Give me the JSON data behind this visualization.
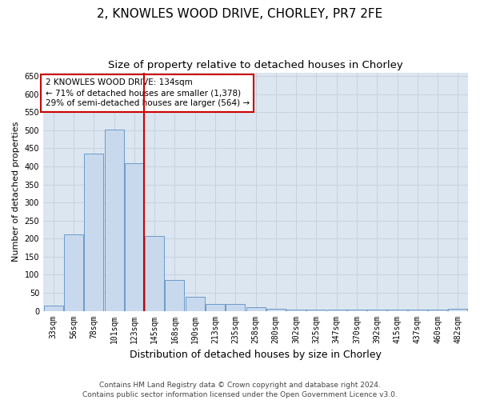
{
  "title": "2, KNOWLES WOOD DRIVE, CHORLEY, PR7 2FE",
  "subtitle": "Size of property relative to detached houses in Chorley",
  "xlabel": "Distribution of detached houses by size in Chorley",
  "ylabel": "Number of detached properties",
  "categories": [
    "33sqm",
    "56sqm",
    "78sqm",
    "101sqm",
    "123sqm",
    "145sqm",
    "168sqm",
    "190sqm",
    "213sqm",
    "235sqm",
    "258sqm",
    "280sqm",
    "302sqm",
    "325sqm",
    "347sqm",
    "370sqm",
    "392sqm",
    "415sqm",
    "437sqm",
    "460sqm",
    "482sqm"
  ],
  "values": [
    15,
    212,
    435,
    502,
    408,
    207,
    85,
    38,
    18,
    18,
    10,
    5,
    3,
    3,
    3,
    3,
    3,
    3,
    3,
    3,
    5
  ],
  "bar_color": "#c9d9ed",
  "bar_edge_color": "#5b8ec4",
  "grid_color": "#c8d0de",
  "background_color": "#dce6f0",
  "annotation_box_facecolor": "#ffffff",
  "annotation_border_color": "#cc0000",
  "ref_line_color": "#cc0000",
  "ref_line_x": 4.5,
  "annotation_text_line1": "2 KNOWLES WOOD DRIVE: 134sqm",
  "annotation_text_line2": "← 71% of detached houses are smaller (1,378)",
  "annotation_text_line3": "29% of semi-detached houses are larger (564) →",
  "ylim": [
    0,
    660
  ],
  "yticks": [
    0,
    50,
    100,
    150,
    200,
    250,
    300,
    350,
    400,
    450,
    500,
    550,
    600,
    650
  ],
  "footer_line1": "Contains HM Land Registry data © Crown copyright and database right 2024.",
  "footer_line2": "Contains public sector information licensed under the Open Government Licence v3.0.",
  "title_fontsize": 11,
  "subtitle_fontsize": 9.5,
  "xlabel_fontsize": 9,
  "ylabel_fontsize": 8,
  "tick_fontsize": 7,
  "annotation_fontsize": 7.5,
  "footer_fontsize": 6.5
}
